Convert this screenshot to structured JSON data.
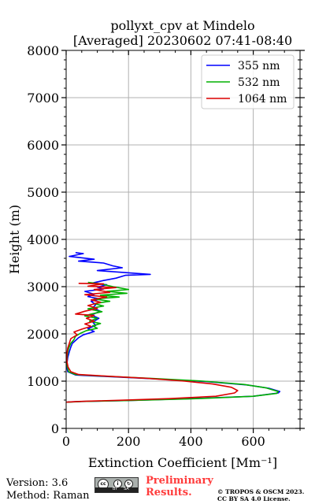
{
  "chart_data": {
    "type": "line",
    "title_line1": "pollyxt_cpv at Mindelo",
    "title_line2": "[Averaged] 20230602 07:41-08:40",
    "xlabel": "Extinction Coefficient [Mm⁻¹]",
    "ylabel": "Height (m)",
    "xlim": [
      0,
      750
    ],
    "ylim": [
      0,
      8000
    ],
    "x_ticks": [
      0,
      200,
      400,
      600
    ],
    "y_ticks": [
      0,
      1000,
      2000,
      3000,
      4000,
      5000,
      6000,
      7000,
      8000
    ],
    "grid": true,
    "legend_position": "top-right",
    "series": [
      {
        "name": "355 nm",
        "color": "#0000ff",
        "points": [
          [
            30,
            3720
          ],
          [
            55,
            3700
          ],
          [
            10,
            3640
          ],
          [
            90,
            3580
          ],
          [
            40,
            3540
          ],
          [
            120,
            3500
          ],
          [
            150,
            3440
          ],
          [
            180,
            3400
          ],
          [
            100,
            3340
          ],
          [
            270,
            3260
          ],
          [
            190,
            3240
          ],
          [
            160,
            3180
          ],
          [
            120,
            3130
          ],
          [
            80,
            3070
          ],
          [
            130,
            3040
          ],
          [
            100,
            2990
          ],
          [
            120,
            2950
          ],
          [
            60,
            2900
          ],
          [
            90,
            2840
          ],
          [
            70,
            2790
          ],
          [
            110,
            2740
          ],
          [
            80,
            2690
          ],
          [
            95,
            2620
          ],
          [
            85,
            2550
          ],
          [
            110,
            2480
          ],
          [
            80,
            2400
          ],
          [
            105,
            2330
          ],
          [
            85,
            2250
          ],
          [
            95,
            2180
          ],
          [
            70,
            2110
          ],
          [
            90,
            2050
          ],
          [
            55,
            1980
          ],
          [
            40,
            1920
          ],
          [
            30,
            1860
          ],
          [
            20,
            1800
          ],
          [
            15,
            1720
          ],
          [
            10,
            1620
          ],
          [
            5,
            1500
          ],
          [
            3,
            1400
          ],
          [
            2,
            1300
          ],
          [
            5,
            1200
          ],
          [
            30,
            1130
          ],
          [
            120,
            1100
          ],
          [
            280,
            1050
          ],
          [
            450,
            990
          ],
          [
            580,
            920
          ],
          [
            650,
            850
          ],
          [
            685,
            780
          ],
          [
            680,
            750
          ],
          [
            600,
            680
          ],
          [
            400,
            630
          ],
          [
            200,
            590
          ],
          [
            50,
            570
          ],
          [
            5,
            560
          ]
        ]
      },
      {
        "name": "532 nm",
        "color": "#00b000",
        "points": [
          [
            70,
            3090
          ],
          [
            110,
            3060
          ],
          [
            150,
            3000
          ],
          [
            200,
            2940
          ],
          [
            130,
            2900
          ],
          [
            195,
            2860
          ],
          [
            110,
            2820
          ],
          [
            170,
            2780
          ],
          [
            90,
            2740
          ],
          [
            140,
            2690
          ],
          [
            90,
            2640
          ],
          [
            120,
            2590
          ],
          [
            70,
            2530
          ],
          [
            115,
            2470
          ],
          [
            80,
            2420
          ],
          [
            60,
            2380
          ],
          [
            100,
            2330
          ],
          [
            75,
            2270
          ],
          [
            110,
            2220
          ],
          [
            85,
            2170
          ],
          [
            100,
            2120
          ],
          [
            65,
            2070
          ],
          [
            45,
            2010
          ],
          [
            30,
            1950
          ],
          [
            25,
            1880
          ],
          [
            15,
            1800
          ],
          [
            8,
            1700
          ],
          [
            5,
            1600
          ],
          [
            3,
            1500
          ],
          [
            2,
            1400
          ],
          [
            4,
            1300
          ],
          [
            8,
            1200
          ],
          [
            30,
            1140
          ],
          [
            110,
            1110
          ],
          [
            270,
            1060
          ],
          [
            440,
            1000
          ],
          [
            570,
            930
          ],
          [
            640,
            860
          ],
          [
            680,
            780
          ],
          [
            675,
            740
          ],
          [
            600,
            680
          ],
          [
            400,
            625
          ],
          [
            200,
            590
          ],
          [
            50,
            570
          ],
          [
            5,
            555
          ]
        ]
      },
      {
        "name": "1064 nm",
        "color": "#dd0000",
        "points": [
          [
            40,
            3070
          ],
          [
            120,
            3060
          ],
          [
            70,
            3010
          ],
          [
            160,
            2980
          ],
          [
            90,
            2940
          ],
          [
            140,
            2880
          ],
          [
            60,
            2830
          ],
          [
            130,
            2780
          ],
          [
            80,
            2720
          ],
          [
            110,
            2670
          ],
          [
            70,
            2600
          ],
          [
            100,
            2540
          ],
          [
            60,
            2480
          ],
          [
            30,
            2420
          ],
          [
            90,
            2390
          ],
          [
            65,
            2330
          ],
          [
            90,
            2270
          ],
          [
            60,
            2210
          ],
          [
            80,
            2160
          ],
          [
            50,
            2100
          ],
          [
            25,
            2040
          ],
          [
            35,
            1980
          ],
          [
            15,
            1900
          ],
          [
            10,
            1800
          ],
          [
            5,
            1700
          ],
          [
            3,
            1600
          ],
          [
            2,
            1500
          ],
          [
            3,
            1400
          ],
          [
            6,
            1300
          ],
          [
            15,
            1200
          ],
          [
            40,
            1140
          ],
          [
            120,
            1110
          ],
          [
            260,
            1060
          ],
          [
            380,
            1000
          ],
          [
            470,
            940
          ],
          [
            530,
            870
          ],
          [
            550,
            800
          ],
          [
            540,
            750
          ],
          [
            480,
            680
          ],
          [
            330,
            630
          ],
          [
            170,
            595
          ],
          [
            40,
            570
          ],
          [
            0,
            555
          ]
        ]
      }
    ]
  },
  "footer": {
    "version": "Version: 3.6",
    "method": "Method: Raman",
    "cc_by": "BY",
    "cc_sa": "SA",
    "prelim_line1": "Preliminary",
    "prelim_line2": "Results.",
    "copyright_line1": "© TROPOS & OSCM 2023.",
    "copyright_line2": "CC BY SA 4.0 License."
  }
}
